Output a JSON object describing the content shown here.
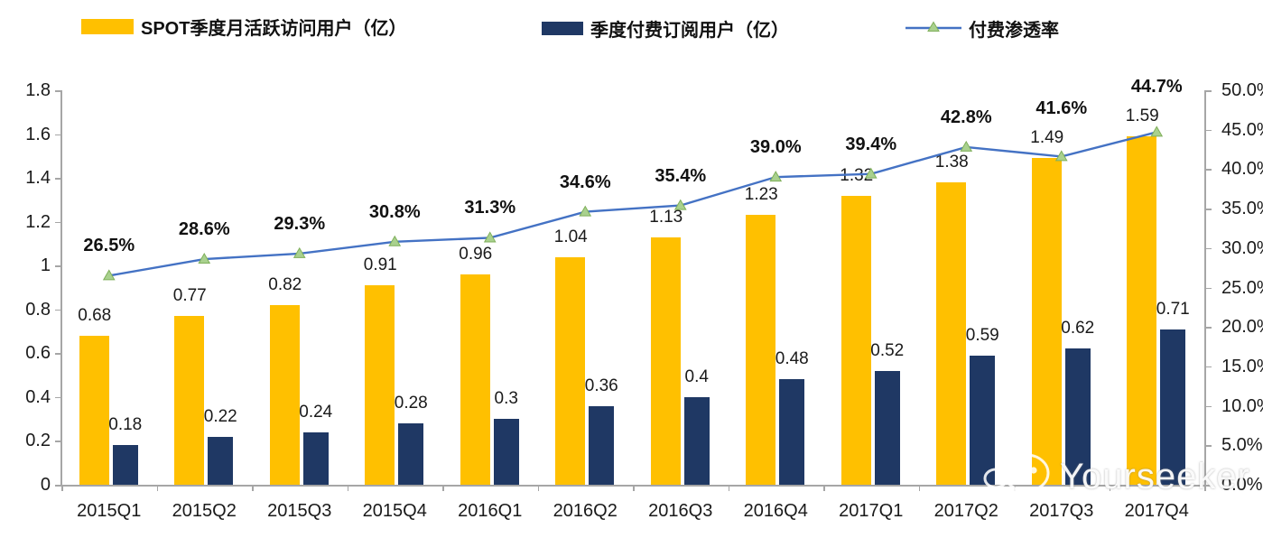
{
  "chart_data": {
    "type": "combo",
    "title": "",
    "categories": [
      "2015Q1",
      "2015Q2",
      "2015Q3",
      "2015Q4",
      "2016Q1",
      "2016Q2",
      "2016Q3",
      "2016Q4",
      "2017Q1",
      "2017Q2",
      "2017Q3",
      "2017Q4"
    ],
    "series": [
      {
        "name": "SPOT季度月活跃访问用户（亿）",
        "type": "bar",
        "axis": "left",
        "color": "#FFC000",
        "values": [
          0.68,
          0.77,
          0.82,
          0.91,
          0.96,
          1.04,
          1.13,
          1.23,
          1.32,
          1.38,
          1.49,
          1.59
        ],
        "labels": [
          "0.68",
          "0.77",
          "0.82",
          "0.91",
          "0.96",
          "1.04",
          "1.13",
          "1.23",
          "1.32",
          "1.38",
          "1.49",
          "1.59"
        ]
      },
      {
        "name": "季度付费订阅用户（亿）",
        "type": "bar",
        "axis": "left",
        "color": "#1F3864",
        "values": [
          0.18,
          0.22,
          0.24,
          0.28,
          0.3,
          0.36,
          0.4,
          0.48,
          0.52,
          0.59,
          0.62,
          0.71
        ],
        "labels": [
          "0.18",
          "0.22",
          "0.24",
          "0.28",
          "0.3",
          "0.36",
          "0.4",
          "0.48",
          "0.52",
          "0.59",
          "0.62",
          "0.71"
        ]
      },
      {
        "name": "付费渗透率",
        "type": "line",
        "axis": "right",
        "color": "#4472C4",
        "marker": "triangle",
        "marker_color": "#A9D18E",
        "marker_edge_color": "#7FAF5A",
        "values": [
          26.5,
          28.6,
          29.3,
          30.8,
          31.3,
          34.6,
          35.4,
          39.0,
          39.4,
          42.8,
          41.6,
          44.7
        ],
        "labels": [
          "26.5%",
          "28.6%",
          "29.3%",
          "30.8%",
          "31.3%",
          "34.6%",
          "35.4%",
          "39.0%",
          "39.4%",
          "42.8%",
          "41.6%",
          "44.7%"
        ]
      }
    ],
    "left_axis": {
      "min": 0,
      "max": 1.8,
      "step": 0.2,
      "tick_labels": [
        "1.8",
        "1.6",
        "1.4",
        "1.2",
        "1",
        "0.8",
        "0.6",
        "0.4",
        "0.2",
        "0"
      ]
    },
    "right_axis": {
      "min": 0,
      "max": 50,
      "step": 5,
      "unit": "%",
      "tick_labels": [
        "50.0%",
        "45.0%",
        "40.0%",
        "35.0%",
        "30.0%",
        "25.0%",
        "20.0%",
        "15.0%",
        "10.0%",
        "5.0%",
        "0.0%"
      ]
    },
    "grid": false,
    "legend_position": "top"
  },
  "watermark": {
    "text": "Yourseeker"
  }
}
